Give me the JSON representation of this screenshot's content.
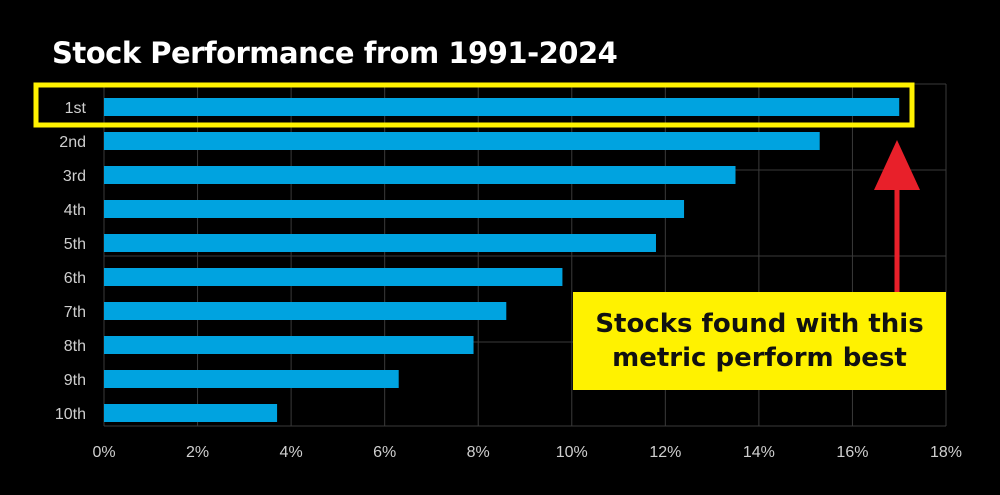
{
  "chart_data": {
    "type": "bar",
    "orientation": "horizontal",
    "title": "Stock Performance from 1991-2024",
    "categories": [
      "1st",
      "2nd",
      "3rd",
      "4th",
      "5th",
      "6th",
      "7th",
      "8th",
      "9th",
      "10th"
    ],
    "values": [
      17.0,
      15.3,
      13.5,
      12.4,
      11.8,
      9.8,
      8.6,
      7.9,
      6.3,
      3.7
    ],
    "xlim": [
      0,
      18
    ],
    "xticks": [
      0,
      2,
      4,
      6,
      8,
      10,
      12,
      14,
      16,
      18
    ],
    "tick_suffix": "%",
    "xlabel": "",
    "ylabel": "",
    "grid": true,
    "bar_color": "#00a3e0",
    "highlight": {
      "category": "1st",
      "color": "#fff200"
    },
    "annotation": {
      "text": "Stocks found with this metric perform best",
      "background": "#fff200",
      "arrow_color": "#e8202a"
    }
  },
  "colors": {
    "background": "#000000",
    "gridline": "#3a3a3a",
    "text": "#cfcfcf",
    "title": "#ffffff"
  }
}
